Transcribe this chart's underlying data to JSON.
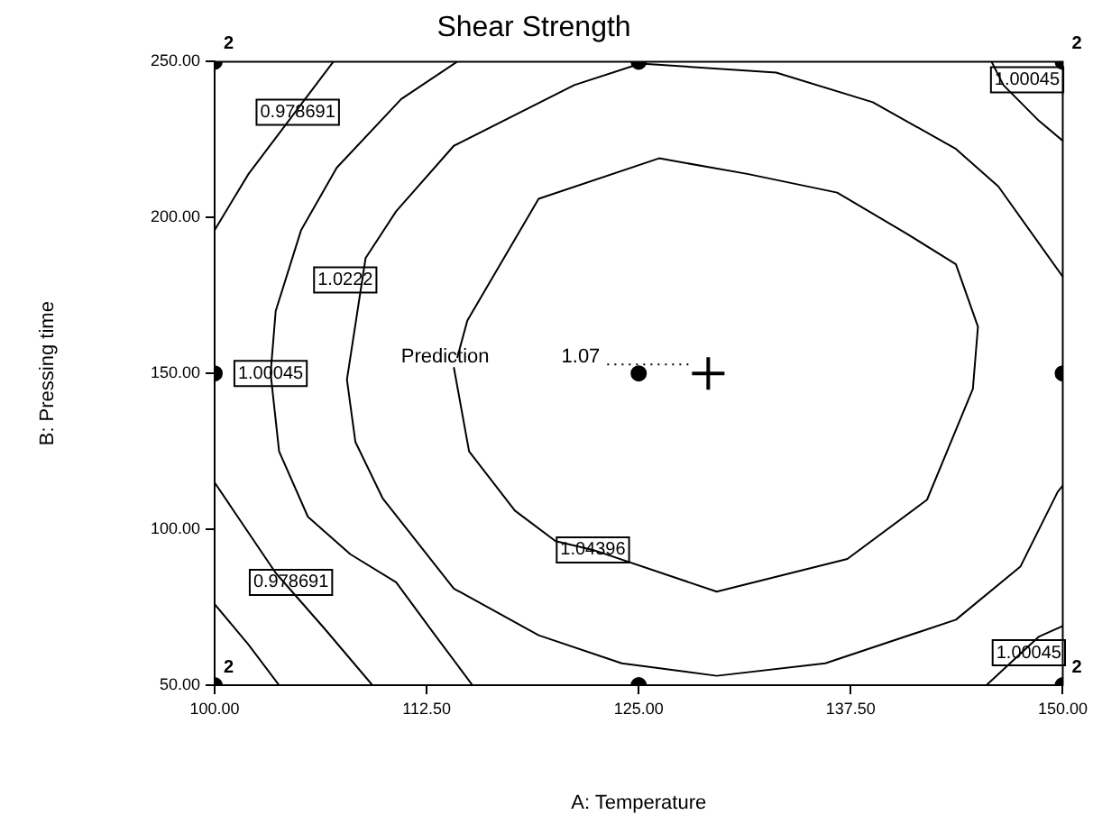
{
  "chart_data": {
    "type": "scatter",
    "title": "Shear Strength",
    "xlabel": "A: Temperature",
    "ylabel": "B: Pressing time",
    "xlim": [
      100,
      150
    ],
    "ylim": [
      50,
      250
    ],
    "xticks": [
      {
        "value": 100,
        "label": "100.00"
      },
      {
        "value": 112.5,
        "label": "112.50"
      },
      {
        "value": 125,
        "label": "125.00"
      },
      {
        "value": 137.5,
        "label": "137.50"
      },
      {
        "value": 150,
        "label": "150.00"
      }
    ],
    "yticks": [
      {
        "value": 50,
        "label": "50.00"
      },
      {
        "value": 100,
        "label": "100.00"
      },
      {
        "value": 150,
        "label": "150.00"
      },
      {
        "value": 200,
        "label": "200.00"
      },
      {
        "value": 250,
        "label": "250.00"
      }
    ],
    "grid": false,
    "legend": false,
    "series": [
      {
        "type": "line",
        "color": "#000000",
        "x": [
          100,
          102,
          104.5,
          107
        ],
        "values": [
          196,
          214,
          232,
          250
        ]
      },
      {
        "type": "line",
        "color": "#000000",
        "x": [
          100,
          103.6,
          106.5,
          109.3
        ],
        "values": [
          115,
          86,
          68,
          50
        ]
      },
      {
        "type": "line",
        "color": "#000000",
        "x": [
          100,
          102,
          103.8
        ],
        "values": [
          76,
          63,
          50
        ]
      },
      {
        "type": "line",
        "color": "#000000",
        "x": [
          114.3,
          111,
          107.2,
          105.1,
          103.6,
          103.3,
          103.8,
          105.5,
          108,
          110.7,
          113,
          115.2
        ],
        "values": [
          250,
          238,
          216,
          196,
          170,
          150,
          125,
          104,
          92,
          83,
          66,
          50
        ]
      },
      {
        "type": "line",
        "color": "#000000",
        "x": [
          145.8,
          146.5,
          148.6,
          150
        ],
        "values": [
          250,
          242.5,
          231,
          224.6
        ]
      },
      {
        "type": "line",
        "color": "#000000",
        "x": [
          145.5,
          148.6,
          150
        ],
        "values": [
          50,
          65.6,
          69
        ]
      },
      {
        "type": "line",
        "color": "#000000",
        "x": [
          150,
          146.2,
          143.7,
          138.8,
          133.1,
          125.1,
          121.2,
          114.1,
          110.7,
          108.9,
          107.8,
          108.3,
          109.9,
          114.1,
          119.1,
          124,
          129.6,
          136,
          143.7,
          147.5,
          149.7,
          150
        ],
        "values": [
          181,
          210,
          222,
          237,
          246.5,
          249.4,
          242.5,
          223,
          202,
          187,
          148,
          128,
          110,
          81,
          66,
          57,
          53,
          57,
          71,
          88,
          112,
          114
        ]
      },
      {
        "type": "line",
        "color": "#000000",
        "x": [
          114.3,
          114.9,
          117.7,
          119.1,
          126.2,
          131.4,
          136.7,
          140.9,
          143.7,
          145,
          144.7,
          142,
          137.3,
          129.6,
          122.3,
          120.1,
          117.7,
          115,
          114.1
        ],
        "values": [
          155,
          167,
          193,
          206,
          219,
          214,
          208,
          194.5,
          185,
          165,
          145,
          109.5,
          90.5,
          80,
          93.4,
          96.2,
          106,
          125,
          152
        ]
      },
      {
        "type": "scatter",
        "color": "#000000",
        "marker": "circle",
        "x": [
          100,
          125,
          150,
          100,
          125,
          150,
          100,
          125,
          150
        ],
        "values": [
          250,
          250,
          250,
          150,
          150,
          150,
          50,
          50,
          50
        ]
      },
      {
        "type": "scatter",
        "color": "#000000",
        "marker": "cross",
        "x": [
          129.1
        ],
        "values": [
          150
        ]
      }
    ],
    "annotations": [
      {
        "text": "2",
        "x": 100,
        "y": 250
      },
      {
        "text": "2",
        "x": 150,
        "y": 250
      },
      {
        "text": "2",
        "x": 100,
        "y": 50
      },
      {
        "text": "2",
        "x": 150,
        "y": 50
      },
      {
        "text": "0.978691",
        "x": 104.9,
        "y": 233.8
      },
      {
        "text": "0.978691",
        "x": 104.5,
        "y": 83
      },
      {
        "text": "1.00045",
        "x": 103.3,
        "y": 150
      },
      {
        "text": "1.00045",
        "x": 147.9,
        "y": 244.2
      },
      {
        "text": "1.00045",
        "x": 148,
        "y": 60.4
      },
      {
        "text": "1.0222",
        "x": 107.7,
        "y": 180
      },
      {
        "text": "1.04396",
        "x": 122.3,
        "y": 93.4
      },
      "Prediction",
      "1.07"
    ]
  }
}
